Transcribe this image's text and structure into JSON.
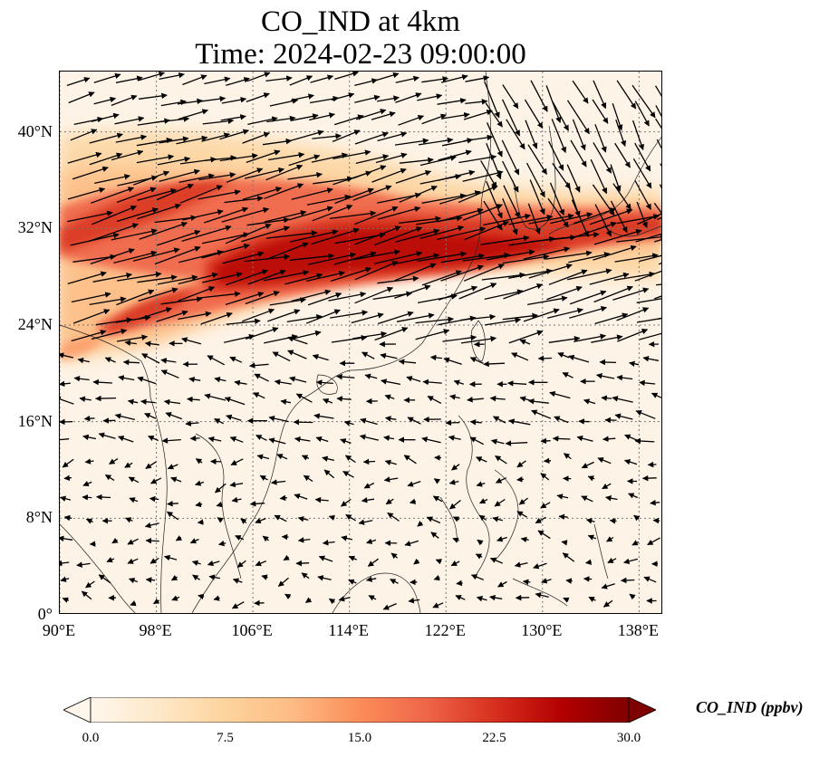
{
  "title": {
    "line1": "CO_IND at 4km",
    "line2": "Time: 2024-02-23 09:00:00"
  },
  "map": {
    "extent": {
      "lon_min": 90,
      "lon_max": 140,
      "lat_min": 0,
      "lat_max": 45
    },
    "lat_ticks": [
      {
        "value": 0,
        "label": "0°"
      },
      {
        "value": 8,
        "label": "8°N"
      },
      {
        "value": 16,
        "label": "16°N"
      },
      {
        "value": 24,
        "label": "24°N"
      },
      {
        "value": 32,
        "label": "32°N"
      },
      {
        "value": 40,
        "label": "40°N"
      }
    ],
    "lon_ticks": [
      {
        "value": 90,
        "label": "90°E"
      },
      {
        "value": 98,
        "label": "98°E"
      },
      {
        "value": 106,
        "label": "106°E"
      },
      {
        "value": 114,
        "label": "114°E"
      },
      {
        "value": 122,
        "label": "122°E"
      },
      {
        "value": 130,
        "label": "130°E"
      },
      {
        "value": 138,
        "label": "138°E"
      }
    ],
    "gridlines": true,
    "field_variable": "CO_IND",
    "vectors": "wind"
  },
  "colorbar": {
    "label": "CO_IND (ppbv)",
    "min": 0,
    "max": 30,
    "extend": "both",
    "colormap": "OrRd",
    "ticks": [
      "0.0",
      "7.5",
      "15.0",
      "22.5",
      "30.0"
    ],
    "colors": [
      "#fff7ec",
      "#fee8c8",
      "#fdd49e",
      "#fdbb84",
      "#fc8d59",
      "#ef6548",
      "#d7301f",
      "#b30000",
      "#7f0000"
    ]
  }
}
